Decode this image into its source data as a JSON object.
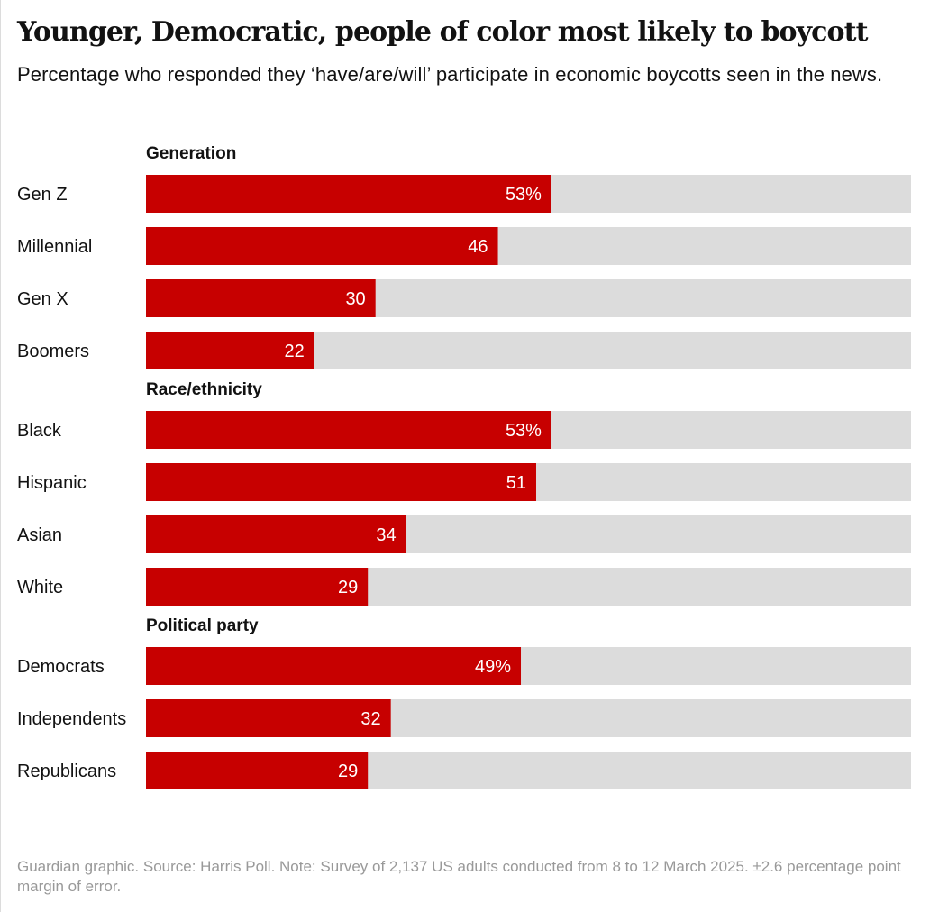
{
  "header": {
    "title": "Younger, Democratic, people of color most likely to boycott",
    "subtitle": "Percentage who responded they ‘have/are/will’ participate in economic boycotts seen in the news."
  },
  "chart_data": {
    "type": "bar",
    "orientation": "horizontal",
    "xlim": [
      0,
      100
    ],
    "unit_suffix": "%",
    "colors": {
      "bar": "#c70000",
      "track": "#dcdcdc",
      "label": "#121212",
      "value_label": "#ffffff"
    },
    "groups": [
      {
        "name": "Generation",
        "categories": [
          "Gen Z",
          "Millennial",
          "Gen X",
          "Boomers"
        ],
        "values": [
          53,
          46,
          30,
          22
        ],
        "labels": [
          "53%",
          "46",
          "30",
          "22"
        ]
      },
      {
        "name": "Race/ethnicity",
        "categories": [
          "Black",
          "Hispanic",
          "Asian",
          "White"
        ],
        "values": [
          53,
          51,
          34,
          29
        ],
        "labels": [
          "53%",
          "51",
          "34",
          "29"
        ]
      },
      {
        "name": "Political party",
        "categories": [
          "Democrats",
          "Independents",
          "Republicans"
        ],
        "values": [
          49,
          32,
          29
        ],
        "labels": [
          "49%",
          "32",
          "29"
        ]
      }
    ]
  },
  "footer": {
    "source": "Guardian graphic. Source: Harris Poll. Note: Survey of 2,137 US adults conducted from 8 to 12 March 2025. ±2.6 percentage point margin of error."
  }
}
